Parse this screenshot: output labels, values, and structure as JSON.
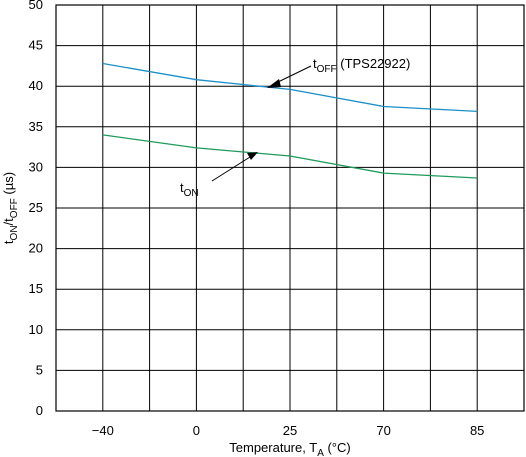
{
  "chart_data": {
    "type": "line",
    "x_categories": [
      "−40",
      "0",
      "25",
      "70",
      "85"
    ],
    "x_values": [
      -40,
      0,
      25,
      70,
      85
    ],
    "ylim": [
      0,
      50
    ],
    "yticks": [
      "0",
      "5",
      "10",
      "15",
      "20",
      "25",
      "30",
      "35",
      "40",
      "45",
      "50"
    ],
    "grid": true,
    "xlabel": {
      "main": "Temperature, T",
      "sub": "A",
      "unit": " (°C)"
    },
    "ylabel": {
      "t1": "t",
      "s1": "ON",
      "sep": "/t",
      "s2": "OFF",
      "unit": " (µs)"
    },
    "series": [
      {
        "name": "tOFF (TPS22922)",
        "label_main": "t",
        "label_sub": "OFF",
        "label_rest": " (TPS22922)",
        "color": "#1a8fc9",
        "points": [
          {
            "x": -40,
            "y": 42.8
          },
          {
            "x": 0,
            "y": 40.8
          },
          {
            "x": 25,
            "y": 39.6
          },
          {
            "x": 70,
            "y": 37.5
          },
          {
            "x": 85,
            "y": 36.9
          }
        ]
      },
      {
        "name": "tON",
        "label_main": "t",
        "label_sub": "ON",
        "label_rest": "",
        "color": "#1f9a5a",
        "points": [
          {
            "x": -40,
            "y": 34.0
          },
          {
            "x": 0,
            "y": 32.4
          },
          {
            "x": 25,
            "y": 31.4
          },
          {
            "x": 70,
            "y": 29.3
          },
          {
            "x": 85,
            "y": 28.7
          }
        ]
      }
    ]
  }
}
